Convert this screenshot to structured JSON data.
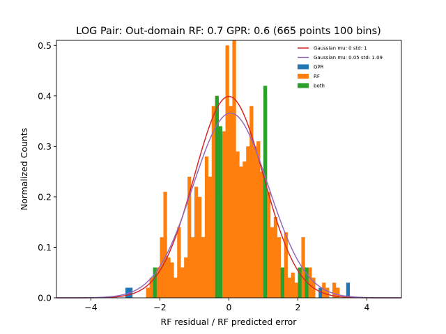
{
  "chart_data": {
    "type": "histogram",
    "title": "LOG Pair: Out-domain RF: 0.7 GPR: 0.6 (665 points 100 bins)",
    "xlabel": "RF residual / RF predicted error",
    "ylabel": "Normalized Counts",
    "xlim": [
      -5.0,
      5.0
    ],
    "ylim": [
      0,
      0.51
    ],
    "xticks": [
      -4,
      -2,
      0,
      2,
      4
    ],
    "yticks": [
      0.0,
      0.1,
      0.2,
      0.3,
      0.4,
      0.5
    ],
    "bin_width": 0.1,
    "legend_position": "upper right",
    "series": [
      {
        "name": "Gaussian mu: 0 std: 1",
        "kind": "line",
        "color": "#d62728",
        "mu": 0,
        "std": 1
      },
      {
        "name": "Gaussian mu: 0.05 std: 1.09",
        "kind": "line",
        "color": "#9467bd",
        "mu": 0.05,
        "std": 1.09
      },
      {
        "name": "GPR",
        "kind": "bar",
        "color": "#1f77b4",
        "bins": [
          [
            -2.95,
            0.02
          ],
          [
            -2.85,
            0.02
          ],
          [
            -2.35,
            0.02
          ],
          [
            -2.25,
            0.02
          ],
          [
            -2.15,
            0.04
          ],
          [
            -2.05,
            0.02
          ],
          [
            -1.95,
            0.02
          ],
          [
            -1.85,
            0.02
          ],
          [
            -1.75,
            0.02
          ],
          [
            -1.65,
            0.04
          ],
          [
            -1.55,
            0.04
          ],
          [
            -1.45,
            0.02
          ],
          [
            -1.35,
            0.04
          ],
          [
            -1.25,
            0.04
          ],
          [
            -1.15,
            0.08
          ],
          [
            -1.05,
            0.08
          ],
          [
            -0.95,
            0.08
          ],
          [
            -0.85,
            0.1
          ],
          [
            -0.75,
            0.12
          ],
          [
            -0.65,
            0.1
          ],
          [
            -0.55,
            0.1
          ],
          [
            -0.45,
            0.14
          ],
          [
            -0.35,
            0.16
          ],
          [
            -0.25,
            0.18
          ],
          [
            -0.15,
            0.2
          ],
          [
            -0.05,
            0.14
          ],
          [
            0.05,
            0.26
          ],
          [
            0.15,
            0.24
          ],
          [
            0.25,
            0.16
          ],
          [
            0.35,
            0.1
          ],
          [
            0.45,
            0.08
          ],
          [
            0.55,
            0.08
          ],
          [
            0.65,
            0.06
          ],
          [
            0.75,
            0.1
          ],
          [
            0.85,
            0.08
          ],
          [
            0.95,
            0.08
          ],
          [
            1.05,
            0.08
          ],
          [
            1.15,
            0.06
          ],
          [
            1.25,
            0.06
          ],
          [
            1.35,
            0.04
          ],
          [
            1.45,
            0.04
          ],
          [
            1.55,
            0.02
          ],
          [
            1.65,
            0.02
          ],
          [
            1.85,
            0.04
          ],
          [
            1.95,
            0.02
          ],
          [
            2.05,
            0.02
          ],
          [
            2.15,
            0.02
          ],
          [
            2.25,
            0.02
          ],
          [
            2.65,
            0.02
          ],
          [
            2.75,
            0.02
          ],
          [
            2.85,
            0.02
          ],
          [
            3.05,
            0.02
          ],
          [
            3.15,
            0.02
          ],
          [
            3.45,
            0.03
          ]
        ]
      },
      {
        "name": "RF",
        "kind": "bar",
        "color": "#ff7f0e",
        "bins": [
          [
            -2.35,
            0.02
          ],
          [
            -2.25,
            0.04
          ],
          [
            -2.15,
            0.04
          ],
          [
            -2.05,
            0.06
          ],
          [
            -1.95,
            0.12
          ],
          [
            -1.85,
            0.21
          ],
          [
            -1.75,
            0.08
          ],
          [
            -1.65,
            0.07
          ],
          [
            -1.55,
            0.04
          ],
          [
            -1.45,
            0.14
          ],
          [
            -1.35,
            0.06
          ],
          [
            -1.25,
            0.08
          ],
          [
            -1.15,
            0.24
          ],
          [
            -1.05,
            0.12
          ],
          [
            -0.95,
            0.22
          ],
          [
            -0.85,
            0.2
          ],
          [
            -0.75,
            0.12
          ],
          [
            -0.65,
            0.28
          ],
          [
            -0.55,
            0.24
          ],
          [
            -0.45,
            0.38
          ],
          [
            -0.35,
            0.4
          ],
          [
            -0.25,
            0.2
          ],
          [
            -0.15,
            0.33
          ],
          [
            -0.05,
            0.5
          ],
          [
            0.05,
            0.38
          ],
          [
            0.15,
            0.51
          ],
          [
            0.25,
            0.29
          ],
          [
            0.35,
            0.26
          ],
          [
            0.45,
            0.27
          ],
          [
            0.55,
            0.3
          ],
          [
            0.65,
            0.38
          ],
          [
            0.75,
            0.3
          ],
          [
            0.85,
            0.31
          ],
          [
            0.95,
            0.25
          ],
          [
            1.05,
            0.4
          ],
          [
            1.15,
            0.21
          ],
          [
            1.25,
            0.14
          ],
          [
            1.35,
            0.16
          ],
          [
            1.45,
            0.12
          ],
          [
            1.55,
            0.06
          ],
          [
            1.65,
            0.13
          ],
          [
            1.75,
            0.04
          ],
          [
            1.85,
            0.05
          ],
          [
            1.95,
            0.03
          ],
          [
            2.05,
            0.04
          ],
          [
            2.15,
            0.12
          ],
          [
            2.25,
            0.02
          ],
          [
            2.35,
            0.06
          ],
          [
            2.45,
            0.04
          ],
          [
            2.75,
            0.03
          ],
          [
            2.85,
            0.02
          ],
          [
            3.05,
            0.03
          ],
          [
            3.15,
            0.02
          ]
        ]
      },
      {
        "name": "both",
        "kind": "bar",
        "color": "#2ca02c",
        "bins": [
          [
            -2.15,
            0.06
          ],
          [
            -0.35,
            0.4
          ],
          [
            -0.25,
            0.34
          ],
          [
            1.05,
            0.42
          ],
          [
            1.55,
            0.06
          ],
          [
            2.05,
            0.06
          ],
          [
            2.25,
            0.06
          ]
        ]
      }
    ]
  }
}
